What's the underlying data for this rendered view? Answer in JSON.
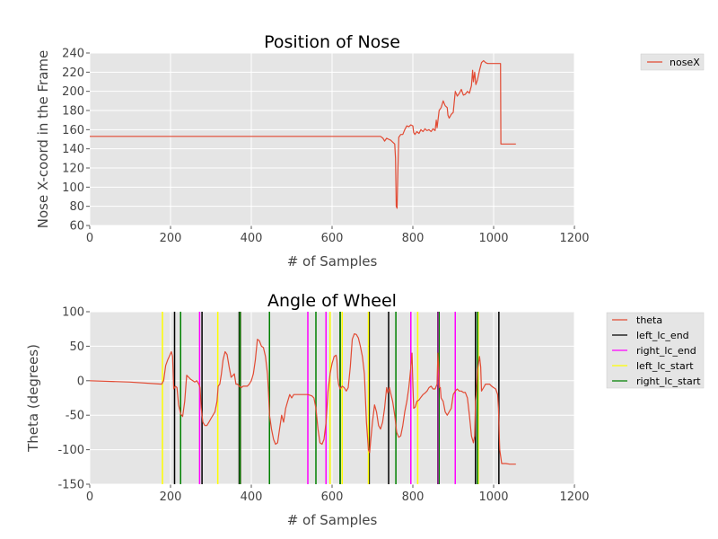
{
  "chart_data": [
    {
      "type": "line",
      "title": "Position of Nose",
      "xlabel": "# of Samples",
      "ylabel": "Nose X-coord in the Frame",
      "xlim": [
        0,
        1200
      ],
      "ylim": [
        60,
        240
      ],
      "xticks": [
        0,
        200,
        400,
        600,
        800,
        1000,
        1200
      ],
      "yticks": [
        60,
        80,
        100,
        120,
        140,
        160,
        180,
        200,
        220,
        240
      ],
      "grid": true,
      "legend_position": "outside-right",
      "series": [
        {
          "name": "noseX",
          "color": "#e24a33",
          "points": [
            [
              0,
              153
            ],
            [
              720,
              153
            ],
            [
              726,
              151
            ],
            [
              730,
              148
            ],
            [
              735,
              151
            ],
            [
              740,
              150
            ],
            [
              745,
              149
            ],
            [
              750,
              147
            ],
            [
              755,
              145
            ],
            [
              757,
              130
            ],
            [
              759,
              80
            ],
            [
              761,
              78
            ],
            [
              763,
              120
            ],
            [
              765,
              152
            ],
            [
              770,
              155
            ],
            [
              775,
              155
            ],
            [
              780,
              160
            ],
            [
              785,
              164
            ],
            [
              790,
              163
            ],
            [
              795,
              165
            ],
            [
              800,
              164
            ],
            [
              802,
              157
            ],
            [
              805,
              155
            ],
            [
              810,
              158
            ],
            [
              815,
              156
            ],
            [
              820,
              160
            ],
            [
              825,
              158
            ],
            [
              830,
              161
            ],
            [
              835,
              159
            ],
            [
              840,
              160
            ],
            [
              845,
              158
            ],
            [
              850,
              161
            ],
            [
              855,
              159
            ],
            [
              858,
              170
            ],
            [
              860,
              162
            ],
            [
              865,
              180
            ],
            [
              870,
              183
            ],
            [
              875,
              190
            ],
            [
              880,
              185
            ],
            [
              885,
              183
            ],
            [
              887,
              175
            ],
            [
              890,
              172
            ],
            [
              895,
              176
            ],
            [
              900,
              178
            ],
            [
              905,
              200
            ],
            [
              910,
              195
            ],
            [
              915,
              198
            ],
            [
              920,
              202
            ],
            [
              925,
              196
            ],
            [
              930,
              197
            ],
            [
              935,
              200
            ],
            [
              940,
              198
            ],
            [
              945,
              206
            ],
            [
              948,
              222
            ],
            [
              950,
              210
            ],
            [
              953,
              220
            ],
            [
              956,
              207
            ],
            [
              960,
              212
            ],
            [
              965,
              222
            ],
            [
              970,
              230
            ],
            [
              975,
              232
            ],
            [
              980,
              230
            ],
            [
              985,
              229
            ],
            [
              990,
              229
            ],
            [
              1000,
              229
            ],
            [
              1017,
              229
            ],
            [
              1018,
              145
            ],
            [
              1055,
              145
            ]
          ]
        }
      ]
    },
    {
      "type": "line",
      "title": "Angle of Wheel",
      "xlabel": "# of Samples",
      "ylabel": "Theta (degrees)",
      "xlim": [
        0,
        1200
      ],
      "ylim": [
        -150,
        100
      ],
      "xticks": [
        0,
        200,
        400,
        600,
        800,
        1000,
        1200
      ],
      "yticks": [
        -150,
        -100,
        -50,
        0,
        50,
        100
      ],
      "grid": true,
      "legend_position": "outside-right",
      "series": [
        {
          "name": "theta",
          "color": "#e24a33",
          "points": [
            [
              0,
              0
            ],
            [
              100,
              -2
            ],
            [
              178,
              -5
            ],
            [
              183,
              0
            ],
            [
              188,
              22
            ],
            [
              193,
              30
            ],
            [
              197,
              35
            ],
            [
              202,
              42
            ],
            [
              205,
              35
            ],
            [
              208,
              -12
            ],
            [
              212,
              -8
            ],
            [
              216,
              -10
            ],
            [
              220,
              -35
            ],
            [
              225,
              -48
            ],
            [
              230,
              -52
            ],
            [
              235,
              -30
            ],
            [
              240,
              8
            ],
            [
              245,
              5
            ],
            [
              250,
              2
            ],
            [
              255,
              0
            ],
            [
              260,
              -2
            ],
            [
              265,
              0
            ],
            [
              270,
              -5
            ],
            [
              273,
              -10
            ],
            [
              276,
              -40
            ],
            [
              280,
              -60
            ],
            [
              285,
              -65
            ],
            [
              290,
              -65
            ],
            [
              295,
              -60
            ],
            [
              300,
              -55
            ],
            [
              310,
              -45
            ],
            [
              315,
              -30
            ],
            [
              318,
              -8
            ],
            [
              322,
              -5
            ],
            [
              326,
              10
            ],
            [
              330,
              30
            ],
            [
              335,
              42
            ],
            [
              340,
              38
            ],
            [
              345,
              20
            ],
            [
              350,
              5
            ],
            [
              355,
              8
            ],
            [
              358,
              10
            ],
            [
              362,
              -5
            ],
            [
              366,
              -5
            ],
            [
              370,
              -8
            ],
            [
              375,
              -10
            ],
            [
              380,
              -8
            ],
            [
              385,
              -8
            ],
            [
              390,
              -8
            ],
            [
              395,
              -5
            ],
            [
              400,
              0
            ],
            [
              405,
              10
            ],
            [
              410,
              30
            ],
            [
              415,
              60
            ],
            [
              420,
              58
            ],
            [
              425,
              50
            ],
            [
              430,
              48
            ],
            [
              435,
              35
            ],
            [
              440,
              10
            ],
            [
              442,
              -10
            ],
            [
              445,
              -50
            ],
            [
              450,
              -70
            ],
            [
              455,
              -85
            ],
            [
              460,
              -92
            ],
            [
              465,
              -90
            ],
            [
              470,
              -70
            ],
            [
              475,
              -50
            ],
            [
              480,
              -60
            ],
            [
              485,
              -40
            ],
            [
              490,
              -30
            ],
            [
              495,
              -20
            ],
            [
              500,
              -25
            ],
            [
              505,
              -20
            ],
            [
              510,
              -20
            ],
            [
              520,
              -20
            ],
            [
              530,
              -20
            ],
            [
              540,
              -20
            ],
            [
              550,
              -22
            ],
            [
              555,
              -25
            ],
            [
              560,
              -40
            ],
            [
              565,
              -70
            ],
            [
              570,
              -90
            ],
            [
              575,
              -92
            ],
            [
              580,
              -85
            ],
            [
              585,
              -60
            ],
            [
              590,
              -15
            ],
            [
              595,
              10
            ],
            [
              600,
              25
            ],
            [
              605,
              35
            ],
            [
              610,
              37
            ],
            [
              612,
              30
            ],
            [
              614,
              5
            ],
            [
              616,
              -5
            ],
            [
              620,
              -12
            ],
            [
              625,
              -8
            ],
            [
              630,
              -10
            ],
            [
              635,
              -15
            ],
            [
              640,
              -10
            ],
            [
              645,
              20
            ],
            [
              650,
              60
            ],
            [
              655,
              68
            ],
            [
              660,
              67
            ],
            [
              665,
              62
            ],
            [
              670,
              50
            ],
            [
              675,
              35
            ],
            [
              680,
              10
            ],
            [
              685,
              -60
            ],
            [
              690,
              -100
            ],
            [
              693,
              -104
            ],
            [
              695,
              -90
            ],
            [
              700,
              -60
            ],
            [
              705,
              -35
            ],
            [
              710,
              -45
            ],
            [
              715,
              -65
            ],
            [
              720,
              -70
            ],
            [
              725,
              -60
            ],
            [
              730,
              -40
            ],
            [
              735,
              -10
            ],
            [
              738,
              -18
            ],
            [
              742,
              -10
            ],
            [
              746,
              -20
            ],
            [
              750,
              -30
            ],
            [
              755,
              -50
            ],
            [
              760,
              -75
            ],
            [
              765,
              -82
            ],
            [
              770,
              -80
            ],
            [
              775,
              -65
            ],
            [
              780,
              -45
            ],
            [
              785,
              -30
            ],
            [
              790,
              -10
            ],
            [
              795,
              20
            ],
            [
              798,
              40
            ],
            [
              800,
              -5
            ],
            [
              802,
              -40
            ],
            [
              806,
              -38
            ],
            [
              810,
              -30
            ],
            [
              815,
              -28
            ],
            [
              820,
              -24
            ],
            [
              825,
              -20
            ],
            [
              830,
              -18
            ],
            [
              835,
              -15
            ],
            [
              840,
              -10
            ],
            [
              845,
              -8
            ],
            [
              850,
              -12
            ],
            [
              855,
              -12
            ],
            [
              860,
              -5
            ],
            [
              862,
              40
            ],
            [
              864,
              20
            ],
            [
              866,
              -10
            ],
            [
              868,
              -10
            ],
            [
              870,
              -25
            ],
            [
              875,
              -30
            ],
            [
              880,
              -45
            ],
            [
              885,
              -50
            ],
            [
              890,
              -45
            ],
            [
              895,
              -40
            ],
            [
              900,
              -20
            ],
            [
              905,
              -15
            ],
            [
              910,
              -12
            ],
            [
              915,
              -15
            ],
            [
              920,
              -15
            ],
            [
              925,
              -17
            ],
            [
              930,
              -17
            ],
            [
              935,
              -25
            ],
            [
              940,
              -50
            ],
            [
              945,
              -80
            ],
            [
              950,
              -90
            ],
            [
              953,
              -80
            ],
            [
              955,
              -30
            ],
            [
              957,
              -20
            ],
            [
              960,
              15
            ],
            [
              965,
              35
            ],
            [
              968,
              20
            ],
            [
              970,
              -15
            ],
            [
              975,
              -10
            ],
            [
              980,
              -5
            ],
            [
              985,
              -5
            ],
            [
              990,
              -5
            ],
            [
              995,
              -8
            ],
            [
              1000,
              -10
            ],
            [
              1005,
              -12
            ],
            [
              1010,
              -20
            ],
            [
              1012,
              -40
            ],
            [
              1015,
              -100
            ],
            [
              1020,
              -120
            ],
            [
              1030,
              -120
            ],
            [
              1040,
              -121
            ],
            [
              1055,
              -121
            ]
          ]
        }
      ],
      "event_lines": [
        {
          "name": "left_lc_end",
          "color": "#000000",
          "x": [
            210,
            278,
            370,
            373,
            445,
            620,
            692,
            740,
            862,
            955,
            1013
          ]
        },
        {
          "name": "right_lc_end",
          "color": "#ff00ff",
          "x": [
            272,
            540,
            585,
            795,
            863,
            905
          ]
        },
        {
          "name": "left_lc_start",
          "color": "#ffff00",
          "x": [
            180,
            317,
            372,
            595,
            625,
            690,
            812,
            962
          ]
        },
        {
          "name": "right_lc_start",
          "color": "#008000",
          "x": [
            225,
            372,
            445,
            560,
            620,
            758,
            865,
            960
          ]
        }
      ]
    }
  ]
}
